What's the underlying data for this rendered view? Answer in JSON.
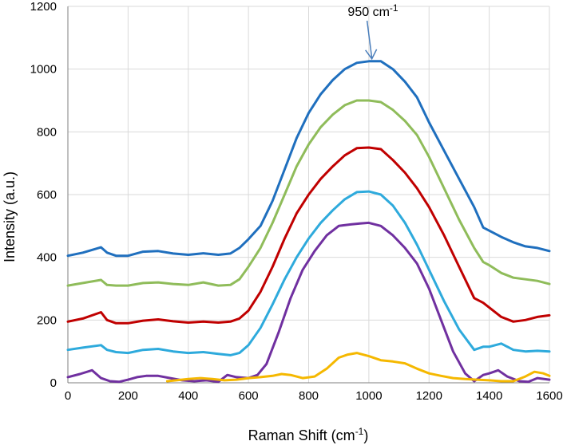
{
  "chart_data": {
    "type": "line",
    "title": "",
    "xlabel": "Raman Shift (cm",
    "xlabel_sup": "-1",
    "xlabel_tail": ")",
    "ylabel": "Intensity (a.u.)",
    "xlim": [
      0,
      1600
    ],
    "ylim": [
      0,
      1200
    ],
    "x_ticks": [
      0,
      200,
      400,
      600,
      800,
      1000,
      1200,
      1400,
      1600
    ],
    "y_ticks": [
      0,
      200,
      400,
      600,
      800,
      1000,
      1200
    ],
    "grid": true,
    "legend": "none",
    "annotation": {
      "text": "950 cm",
      "sup": "-1",
      "arrow_x": 1010,
      "arrow_y": 1030
    },
    "series": [
      {
        "color": "#1f6fbe",
        "x": [
          0,
          50,
          110,
          130,
          160,
          200,
          250,
          300,
          350,
          400,
          450,
          500,
          540,
          570,
          600,
          640,
          680,
          720,
          760,
          800,
          840,
          880,
          920,
          960,
          1000,
          1040,
          1080,
          1120,
          1160,
          1200,
          1250,
          1300,
          1350,
          1380,
          1400,
          1440,
          1480,
          1520,
          1560,
          1600
        ],
        "y": [
          405,
          415,
          432,
          415,
          405,
          405,
          418,
          420,
          412,
          408,
          413,
          408,
          412,
          430,
          458,
          500,
          580,
          680,
          780,
          860,
          920,
          965,
          1000,
          1020,
          1025,
          1025,
          1000,
          960,
          910,
          830,
          740,
          650,
          560,
          495,
          485,
          465,
          448,
          435,
          430,
          420
        ]
      },
      {
        "color": "#8fbc5a",
        "x": [
          0,
          50,
          110,
          130,
          160,
          200,
          250,
          300,
          350,
          400,
          450,
          500,
          540,
          570,
          600,
          640,
          680,
          720,
          760,
          800,
          840,
          880,
          920,
          960,
          1000,
          1040,
          1080,
          1120,
          1160,
          1200,
          1250,
          1300,
          1350,
          1380,
          1400,
          1440,
          1480,
          1520,
          1560,
          1600
        ],
        "y": [
          310,
          318,
          328,
          312,
          310,
          310,
          318,
          320,
          315,
          312,
          320,
          310,
          312,
          330,
          370,
          430,
          510,
          600,
          690,
          760,
          815,
          855,
          885,
          900,
          900,
          895,
          870,
          835,
          790,
          720,
          620,
          520,
          430,
          385,
          375,
          350,
          335,
          330,
          325,
          315
        ]
      },
      {
        "color": "#c00000",
        "x": [
          0,
          50,
          110,
          130,
          160,
          200,
          250,
          300,
          350,
          400,
          450,
          500,
          540,
          570,
          600,
          640,
          680,
          720,
          760,
          800,
          840,
          880,
          920,
          960,
          1000,
          1040,
          1080,
          1120,
          1160,
          1200,
          1250,
          1300,
          1350,
          1380,
          1400,
          1440,
          1480,
          1520,
          1560,
          1600
        ],
        "y": [
          195,
          205,
          225,
          200,
          190,
          190,
          198,
          202,
          196,
          192,
          195,
          192,
          195,
          205,
          230,
          290,
          370,
          460,
          540,
          600,
          650,
          690,
          725,
          748,
          750,
          745,
          710,
          670,
          620,
          560,
          470,
          370,
          270,
          255,
          240,
          210,
          195,
          200,
          210,
          215
        ]
      },
      {
        "color": "#2eaadc",
        "x": [
          0,
          50,
          110,
          130,
          160,
          200,
          250,
          300,
          350,
          400,
          450,
          500,
          540,
          570,
          600,
          640,
          680,
          720,
          760,
          800,
          840,
          880,
          920,
          960,
          1000,
          1040,
          1080,
          1120,
          1160,
          1200,
          1250,
          1300,
          1350,
          1380,
          1400,
          1440,
          1480,
          1520,
          1560,
          1600
        ],
        "y": [
          105,
          112,
          120,
          105,
          98,
          95,
          105,
          108,
          100,
          95,
          98,
          92,
          88,
          95,
          120,
          175,
          250,
          330,
          400,
          460,
          510,
          550,
          585,
          608,
          610,
          600,
          565,
          510,
          440,
          360,
          260,
          170,
          105,
          115,
          115,
          125,
          105,
          100,
          102,
          100
        ]
      },
      {
        "color": "#7030a0",
        "x": [
          0,
          40,
          80,
          110,
          140,
          170,
          200,
          230,
          260,
          300,
          340,
          380,
          420,
          460,
          500,
          530,
          560,
          600,
          630,
          660,
          700,
          740,
          780,
          820,
          860,
          900,
          940,
          970,
          1000,
          1040,
          1080,
          1120,
          1160,
          1200,
          1240,
          1280,
          1320,
          1350,
          1380,
          1400,
          1430,
          1460,
          1500,
          1530,
          1560,
          1600
        ],
        "y": [
          18,
          28,
          40,
          15,
          5,
          3,
          10,
          18,
          22,
          22,
          15,
          8,
          5,
          8,
          3,
          25,
          18,
          15,
          25,
          60,
          160,
          270,
          360,
          420,
          470,
          500,
          505,
          508,
          510,
          500,
          470,
          430,
          380,
          300,
          200,
          100,
          30,
          5,
          25,
          30,
          40,
          20,
          5,
          3,
          15,
          10
        ]
      },
      {
        "color": "#f5b800",
        "x": [
          330,
          360,
          400,
          440,
          480,
          520,
          560,
          600,
          640,
          680,
          710,
          740,
          780,
          820,
          860,
          900,
          930,
          960,
          1000,
          1040,
          1080,
          1120,
          1160,
          1200,
          1240,
          1280,
          1320,
          1360,
          1400,
          1440,
          1480,
          1520,
          1550,
          1580,
          1600
        ],
        "y": [
          5,
          8,
          12,
          15,
          12,
          8,
          10,
          15,
          18,
          22,
          28,
          25,
          15,
          20,
          45,
          80,
          90,
          95,
          85,
          72,
          68,
          62,
          45,
          30,
          22,
          15,
          12,
          10,
          8,
          5,
          5,
          20,
          35,
          30,
          22
        ]
      }
    ]
  }
}
